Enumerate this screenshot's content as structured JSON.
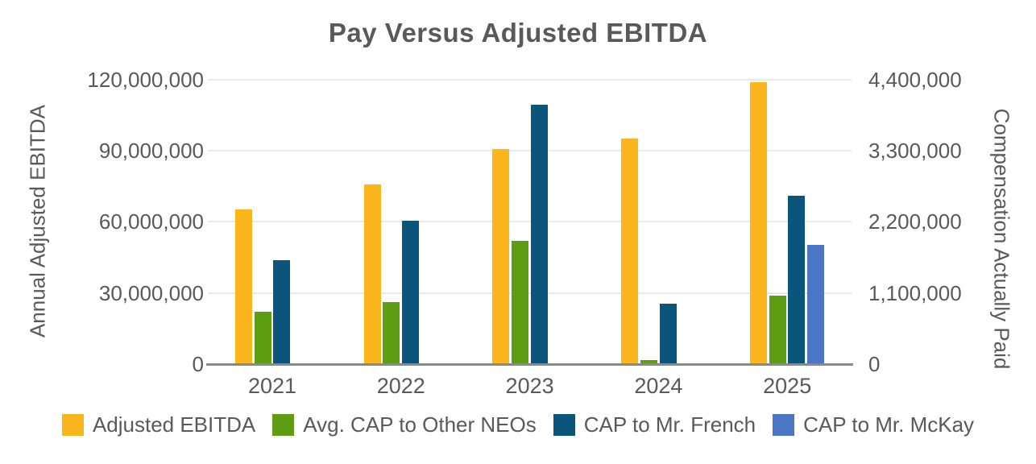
{
  "title": "Pay Versus Adjusted EBITDA",
  "left_axis": {
    "label": "Annual Adjusted EBITDA",
    "ticks": [
      "120,000,000",
      "90,000,000",
      "60,000,000",
      "30,000,000",
      "0"
    ],
    "max": 120000000
  },
  "right_axis": {
    "label": "Compensation Actually Paid",
    "ticks": [
      "4,400,000",
      "3,300,000",
      "2,200,000",
      "1,100,000",
      "0"
    ],
    "max": 4400000
  },
  "chart_data": {
    "type": "bar",
    "title": "Pay Versus Adjusted EBITDA",
    "categories": [
      "2021",
      "2022",
      "2023",
      "2024",
      "2025"
    ],
    "left_ylabel": "Annual Adjusted EBITDA",
    "right_ylabel": "Compensation Actually Paid",
    "left_ylim": [
      0,
      120000000
    ],
    "right_ylim": [
      0,
      4400000
    ],
    "grid": true,
    "legend_position": "bottom",
    "series": [
      {
        "name": "Adjusted EBITDA",
        "axis": "left",
        "color": "#FBB51D",
        "values": [
          65000000,
          75500000,
          90500000,
          95000000,
          118500000
        ]
      },
      {
        "name": "Avg. CAP to Other NEOs",
        "axis": "right",
        "color": "#5F9E13",
        "values": [
          800000,
          950000,
          1900000,
          50000,
          1050000
        ]
      },
      {
        "name": "CAP to Mr. French",
        "axis": "right",
        "color": "#0B557D",
        "values": [
          1600000,
          2200000,
          4000000,
          920000,
          2590000
        ]
      },
      {
        "name": "CAP to Mr. McKay",
        "axis": "right",
        "color": "#4B76C8",
        "values": [
          0,
          0,
          0,
          0,
          1830000
        ]
      }
    ]
  },
  "text_color": "#595959",
  "gridline_color": "#EAEAEA",
  "axis_line_color": "#898989"
}
